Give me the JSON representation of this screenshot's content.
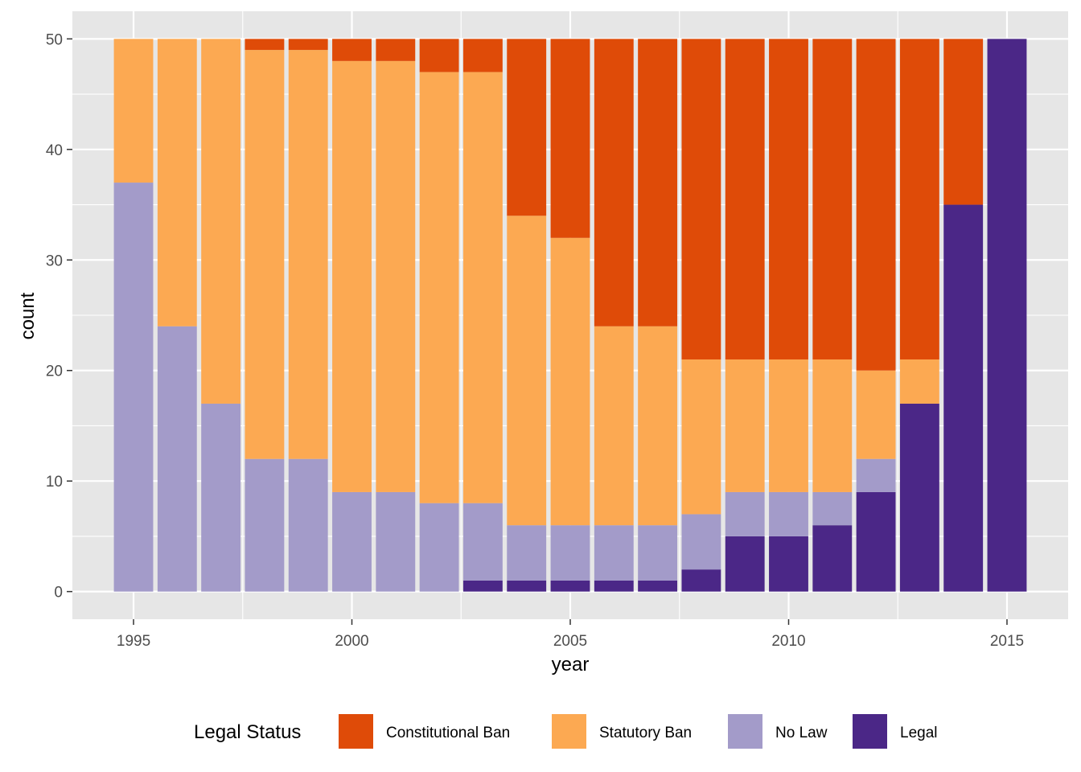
{
  "chart_data": {
    "type": "bar",
    "stacked": true,
    "x": [
      1995,
      1996,
      1997,
      1998,
      1999,
      2000,
      2001,
      2002,
      2003,
      2004,
      2005,
      2006,
      2007,
      2008,
      2009,
      2010,
      2011,
      2012,
      2013,
      2014,
      2015
    ],
    "series": [
      {
        "name": "Legal",
        "color": "#4b2787",
        "values": [
          0,
          0,
          0,
          0,
          0,
          0,
          0,
          0,
          1,
          1,
          1,
          1,
          1,
          2,
          5,
          5,
          6,
          9,
          17,
          35,
          50
        ]
      },
      {
        "name": "No Law",
        "color": "#a39bc9",
        "values": [
          37,
          24,
          17,
          12,
          12,
          9,
          9,
          8,
          7,
          5,
          5,
          5,
          5,
          5,
          4,
          4,
          3,
          3,
          0,
          0,
          0
        ]
      },
      {
        "name": "Statutory Ban",
        "color": "#fca952",
        "values": [
          13,
          26,
          33,
          37,
          37,
          39,
          39,
          39,
          39,
          28,
          26,
          18,
          18,
          14,
          12,
          12,
          12,
          8,
          4,
          0,
          0
        ]
      },
      {
        "name": "Constitutional Ban",
        "color": "#df4b08",
        "values": [
          0,
          0,
          0,
          1,
          1,
          2,
          2,
          3,
          3,
          16,
          18,
          26,
          26,
          29,
          29,
          29,
          29,
          30,
          29,
          15,
          0
        ]
      }
    ],
    "legend_order": [
      "Constitutional Ban",
      "Statutory Ban",
      "No Law",
      "Legal"
    ],
    "xlabel": "year",
    "ylabel": "count",
    "xticks": [
      1995,
      2000,
      2005,
      2010,
      2015
    ],
    "yticks": [
      0,
      10,
      20,
      30,
      40,
      50
    ],
    "xlim": [
      1993.6,
      2016.4
    ],
    "ylim": [
      -2.5,
      52.5
    ],
    "legend_title": "Legal Status",
    "legend_position": "bottom",
    "grid": true,
    "panel_background": "#e6e6e6",
    "grid_color": "#ffffff"
  }
}
